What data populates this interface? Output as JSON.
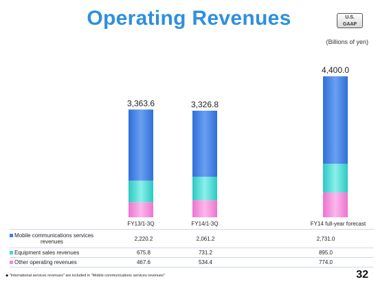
{
  "title": "Operating Revenues",
  "badge": {
    "line1": "U.S.",
    "line2": "GAAP"
  },
  "unit": "(Billions of yen)",
  "chart_data": {
    "type": "bar",
    "stacked": true,
    "categories": [
      "FY13/1-3Q",
      "FY14/1-3Q",
      "FY14 full-year forecast"
    ],
    "totals": [
      "3,363.6",
      "3,326.8",
      "4,400.0"
    ],
    "series": [
      {
        "name": "Mobile communications services revenues",
        "values": [
          2220.2,
          2061.2,
          2731.0
        ],
        "color": "#3f7fe0"
      },
      {
        "name": "Equipment sales revenues",
        "values": [
          675.8,
          731.2,
          895.0
        ],
        "color": "#3fd8d0"
      },
      {
        "name": "Other operating revenues",
        "values": [
          467.6,
          534.4,
          774.0
        ],
        "color": "#f08ad8"
      }
    ]
  },
  "table": {
    "rows": [
      {
        "label_a": "Mobile communications services",
        "label_b": "revenues",
        "values": [
          "2,220.2",
          "2,061.2",
          "2,731.0"
        ]
      },
      {
        "label_a": "Equipment sales revenues",
        "values": [
          "675.8",
          "731.2",
          "895.0"
        ]
      },
      {
        "label_a": "Other operating revenues",
        "values": [
          "467.6",
          "534.4",
          "774.0"
        ]
      }
    ]
  },
  "footnote": "◆ \"International services revenues\" are included in \"Mobile communications services revenues\"",
  "page_number": "32"
}
